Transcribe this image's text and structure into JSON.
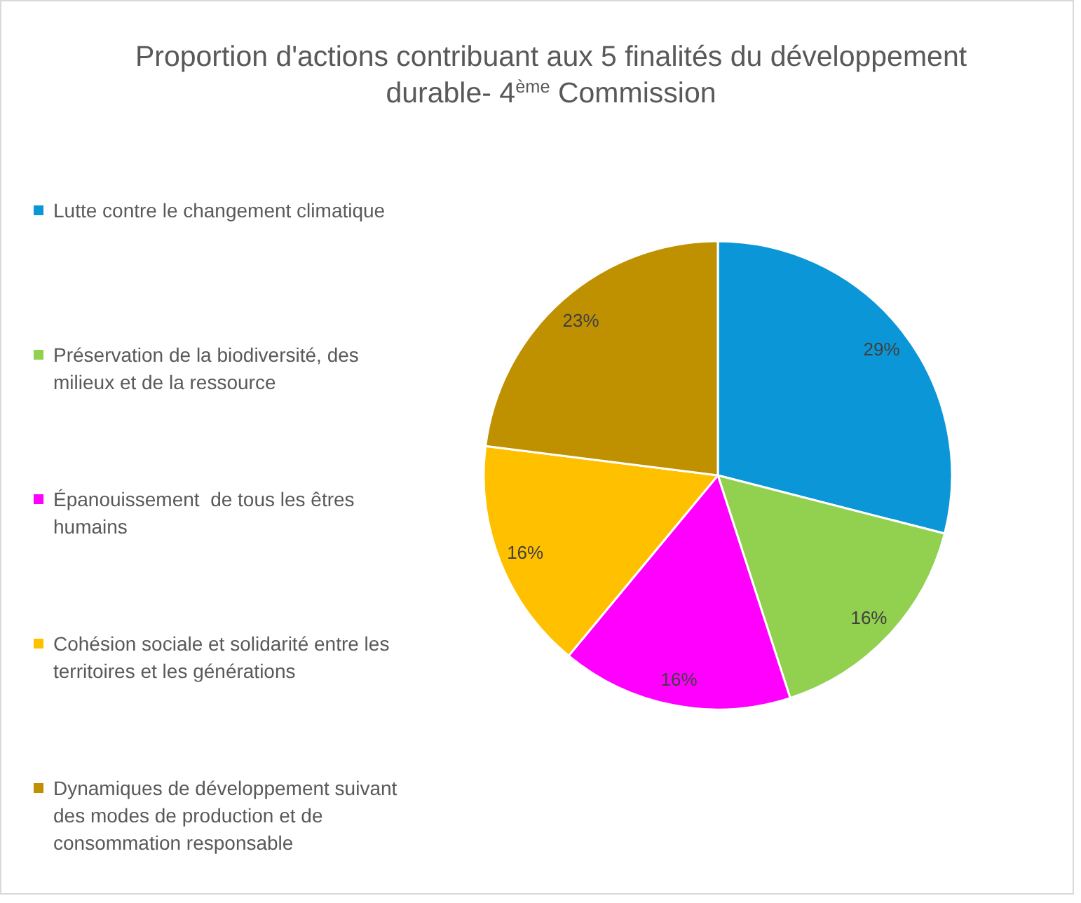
{
  "chart_data": {
    "type": "pie",
    "title": "Proportion d'actions contribuant aux 5 finalités du développement durable- 4$^{ème}$ Commission",
    "categories": [
      "Lutte contre le changement climatique",
      "Préservation de la biodiversité, des milieux et de la ressource",
      "Épanouissement  de tous les êtres humains",
      "Cohésion sociale et solidarité entre les territoires et les générations",
      "Dynamiques de développement suivant des modes de production et de consommation responsable"
    ],
    "values": [
      29,
      16,
      16,
      16,
      23
    ],
    "value_labels": [
      "29%",
      "16%",
      "16%",
      "16%",
      "23%"
    ],
    "colors": [
      "#0b96d8",
      "#92d050",
      "#ff00ff",
      "#ffc000",
      "#bf9000"
    ],
    "legend": "left"
  }
}
